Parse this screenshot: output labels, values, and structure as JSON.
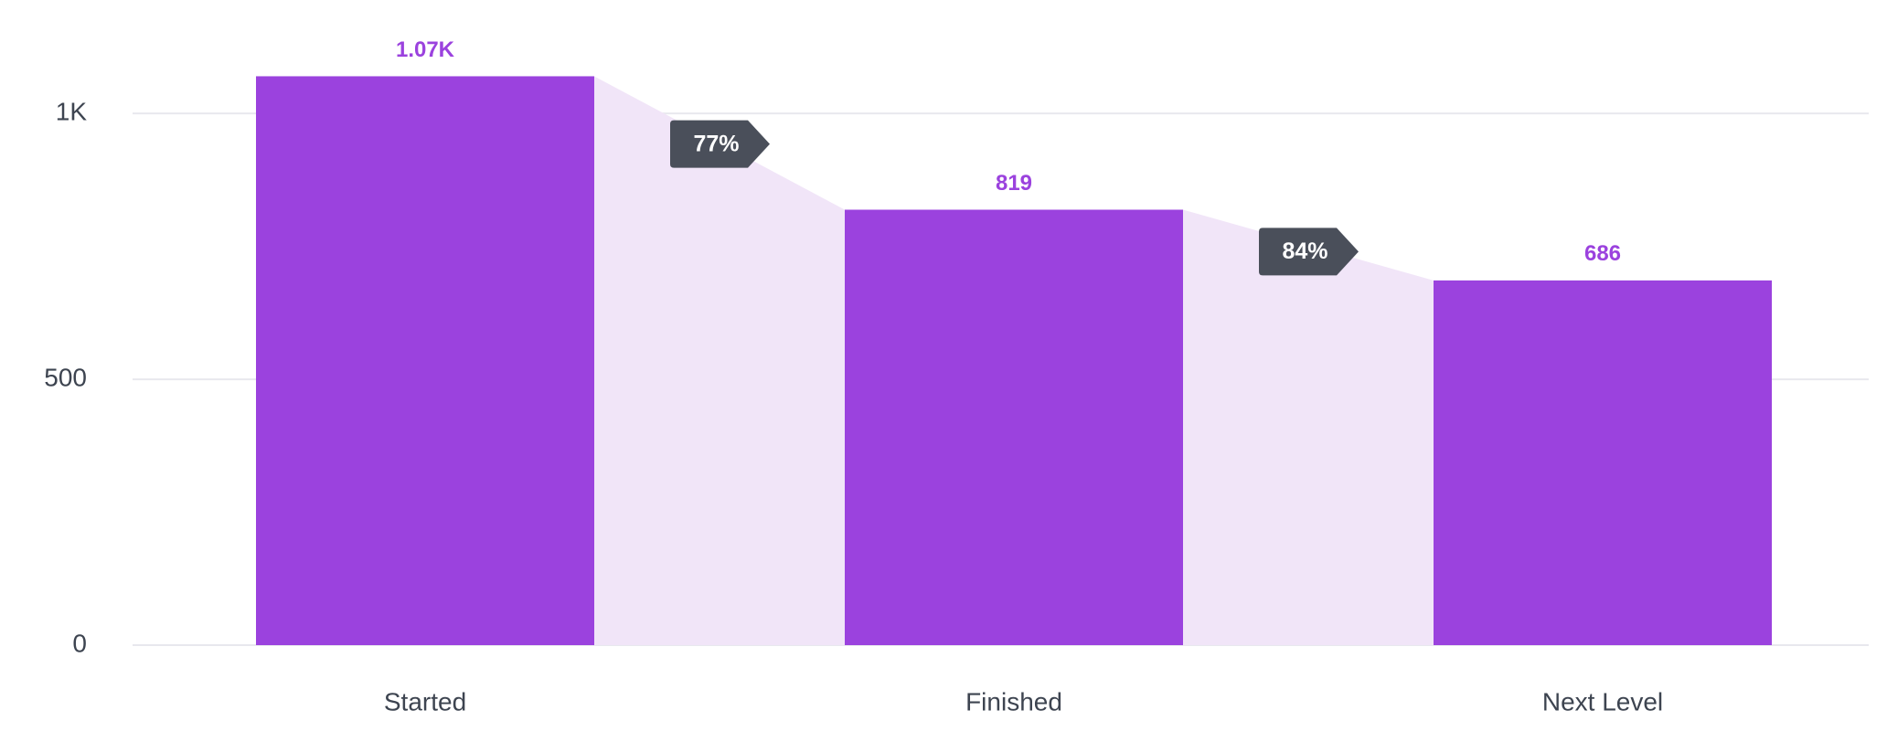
{
  "chart_data": {
    "type": "funnel-bar",
    "categories": [
      "Started",
      "Finished",
      "Next Level"
    ],
    "values": [
      1070,
      819,
      686
    ],
    "value_labels": [
      "1.07K",
      "819",
      "686"
    ],
    "conversion_rates": [
      77,
      84
    ],
    "conversion_labels": [
      "77%",
      "84%"
    ],
    "color": "#9b42de",
    "ylim": [
      0,
      1100
    ],
    "yticks": [
      0,
      500,
      {
        "value": 1000,
        "label": "1K"
      }
    ],
    "grid": true
  }
}
